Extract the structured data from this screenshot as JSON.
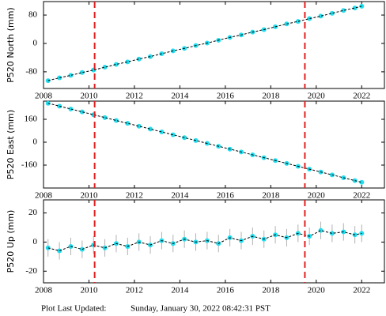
{
  "chart_data": [
    {
      "type": "scatter",
      "ylabel": "P520 North (mm)",
      "color": "#22ddee",
      "line_color": "#000000",
      "x": [
        2008.2,
        2008.7,
        2009.2,
        2009.7,
        2010.2,
        2010.7,
        2011.2,
        2011.7,
        2012.2,
        2012.7,
        2013.2,
        2013.7,
        2014.2,
        2014.7,
        2015.2,
        2015.7,
        2016.2,
        2016.7,
        2017.2,
        2017.7,
        2018.2,
        2018.7,
        2019.2,
        2019.7,
        2020.2,
        2020.7,
        2021.2,
        2021.7,
        2022.0
      ],
      "values": [
        -105,
        -97,
        -90,
        -82,
        -75,
        -67,
        -59,
        -52,
        -44,
        -37,
        -29,
        -21,
        -14,
        -6,
        1,
        9,
        17,
        24,
        32,
        39,
        47,
        55,
        62,
        70,
        77,
        85,
        93,
        100,
        105
      ],
      "xlim": [
        2008,
        2023
      ],
      "xticks": [
        2008,
        2010,
        2012,
        2014,
        2016,
        2018,
        2020,
        2022
      ],
      "ylim": [
        -127,
        118
      ],
      "yticks": [
        -80,
        0,
        80
      ],
      "vlines": [
        2010.25,
        2019.5
      ],
      "vline_color": "#e02020"
    },
    {
      "type": "scatter",
      "ylabel": "P520 East (mm)",
      "color": "#22ddee",
      "line_color": "#000000",
      "x": [
        2008.2,
        2008.7,
        2009.2,
        2009.7,
        2010.2,
        2010.7,
        2011.2,
        2011.7,
        2012.2,
        2012.7,
        2013.2,
        2013.7,
        2014.2,
        2014.7,
        2015.2,
        2015.7,
        2016.2,
        2016.7,
        2017.2,
        2017.7,
        2018.2,
        2018.7,
        2019.2,
        2019.7,
        2020.2,
        2020.7,
        2021.2,
        2021.7,
        2022.0
      ],
      "values": [
        272,
        252,
        232,
        212,
        192,
        172,
        152,
        132,
        112,
        92,
        72,
        52,
        32,
        12,
        -8,
        -28,
        -48,
        -68,
        -88,
        -108,
        -128,
        -148,
        -168,
        -188,
        -208,
        -228,
        -248,
        -268,
        -280
      ],
      "xlim": [
        2008,
        2023
      ],
      "xticks": [
        2008,
        2010,
        2012,
        2014,
        2016,
        2018,
        2020,
        2022
      ],
      "ylim": [
        -320,
        287
      ],
      "yticks": [
        -160,
        0,
        160
      ],
      "vlines": [
        2010.25,
        2019.5
      ],
      "vline_color": "#e02020"
    },
    {
      "type": "scatter",
      "ylabel": "P520 Up (mm)",
      "color": "#22ddee",
      "line_color": "#000000",
      "error_color": "#b0b0b0",
      "x": [
        2008.2,
        2008.7,
        2009.2,
        2009.7,
        2010.2,
        2010.7,
        2011.2,
        2011.7,
        2012.2,
        2012.7,
        2013.2,
        2013.7,
        2014.2,
        2014.7,
        2015.2,
        2015.7,
        2016.2,
        2016.7,
        2017.2,
        2017.7,
        2018.2,
        2018.7,
        2019.2,
        2019.7,
        2020.2,
        2020.7,
        2021.2,
        2021.7,
        2022.0
      ],
      "values": [
        -4,
        -6,
        -3,
        -5,
        -2,
        -4,
        -1,
        -3,
        0,
        -2,
        1,
        -1,
        2,
        0,
        1,
        -1,
        3,
        1,
        4,
        2,
        5,
        3,
        6,
        4,
        8,
        6,
        7,
        5,
        6
      ],
      "errors": [
        6,
        6,
        6,
        6,
        6,
        6,
        6,
        6,
        6,
        6,
        6,
        6,
        6,
        6,
        6,
        6,
        6,
        6,
        6,
        6,
        6,
        6,
        6,
        6,
        6,
        6,
        6,
        6,
        6
      ],
      "xlim": [
        2008,
        2023
      ],
      "xticks": [
        2008,
        2010,
        2012,
        2014,
        2016,
        2018,
        2020,
        2022
      ],
      "ylim": [
        -28,
        29
      ],
      "yticks": [
        -20,
        0,
        20
      ],
      "vlines": [
        2010.25,
        2019.5
      ],
      "vline_color": "#e02020"
    }
  ],
  "footer": {
    "label": "Plot Last Updated:",
    "timestamp": "Sunday, January 30, 2022 08:42:31 PST"
  }
}
